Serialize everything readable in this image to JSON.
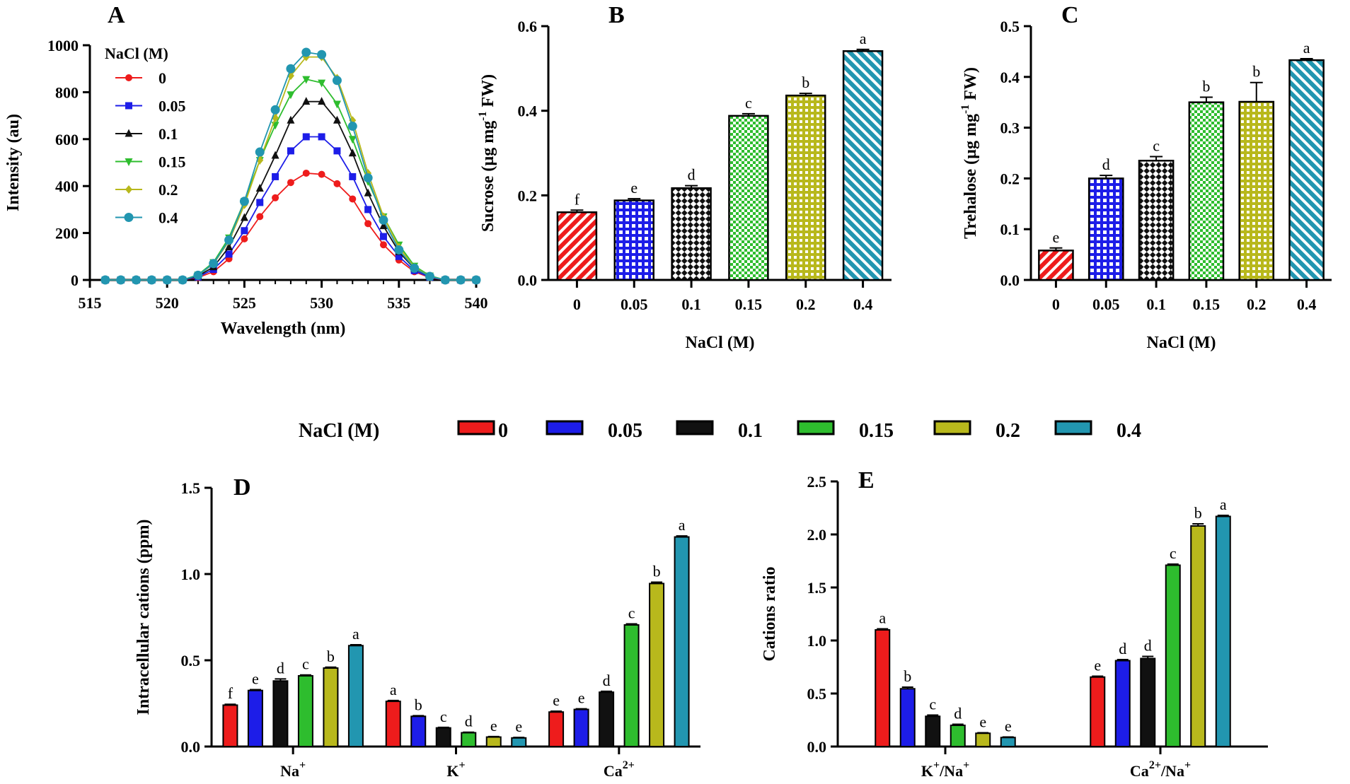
{
  "legend": {
    "title": "NaCl (M)",
    "labels": [
      "0",
      "0.05",
      "0.1",
      "0.15",
      "0.2",
      "0.4"
    ],
    "colors": [
      "#ee1c1c",
      "#1d1de8",
      "#111111",
      "#2ebd2e",
      "#b8b81c",
      "#2296b0"
    ]
  },
  "chart_data": [
    {
      "panel": "A",
      "type": "line",
      "xlabel": "Wavelength (nm)",
      "ylabel": "Intensity (au)",
      "xlim": [
        515,
        540
      ],
      "ylim": [
        0,
        1000
      ],
      "xticks": [
        "515",
        "520",
        "525",
        "530",
        "535",
        "540"
      ],
      "yticks": [
        "0",
        "200",
        "400",
        "600",
        "800",
        "1000"
      ],
      "legend_title": "NaCl (M)",
      "x": [
        516,
        517,
        518,
        519,
        520,
        521,
        522,
        523,
        524,
        525,
        526,
        527,
        528,
        529,
        530,
        531,
        532,
        533,
        534,
        535,
        536,
        537,
        538,
        539,
        540
      ],
      "series": [
        {
          "name": "0",
          "marker": "circle",
          "values": [
            0,
            0,
            0,
            0,
            0,
            0,
            10,
            35,
            90,
            175,
            270,
            350,
            415,
            455,
            450,
            410,
            345,
            240,
            150,
            85,
            35,
            10,
            0,
            0,
            0
          ]
        },
        {
          "name": "0.05",
          "marker": "square",
          "values": [
            0,
            0,
            0,
            0,
            0,
            0,
            13,
            45,
            110,
            210,
            330,
            440,
            550,
            610,
            610,
            550,
            440,
            300,
            185,
            100,
            40,
            12,
            0,
            0,
            0
          ]
        },
        {
          "name": "0.1",
          "marker": "triangle-up",
          "values": [
            0,
            0,
            0,
            0,
            0,
            0,
            17,
            55,
            140,
            265,
            390,
            530,
            680,
            760,
            760,
            680,
            540,
            370,
            230,
            120,
            48,
            15,
            0,
            0,
            0
          ]
        },
        {
          "name": "0.15",
          "marker": "triangle-down",
          "values": [
            0,
            0,
            0,
            0,
            0,
            0,
            22,
            75,
            180,
            335,
            510,
            660,
            790,
            855,
            840,
            750,
            600,
            420,
            270,
            150,
            60,
            18,
            0,
            0,
            0
          ]
        },
        {
          "name": "0.2",
          "marker": "diamond",
          "values": [
            0,
            0,
            0,
            0,
            0,
            0,
            20,
            68,
            165,
            320,
            510,
            690,
            870,
            950,
            950,
            860,
            680,
            455,
            270,
            140,
            54,
            15,
            0,
            0,
            0
          ]
        },
        {
          "name": "0.4",
          "marker": "circle",
          "values": [
            0,
            0,
            0,
            0,
            0,
            0,
            20,
            70,
            170,
            335,
            545,
            725,
            900,
            970,
            960,
            850,
            655,
            435,
            255,
            128,
            50,
            15,
            0,
            0,
            0
          ]
        }
      ]
    },
    {
      "panel": "B",
      "type": "bar",
      "xlabel": "NaCl (M)",
      "ylabel": "Sucrose (µg mg⁻¹ FW)",
      "ylabel_parts": {
        "pre": "Sucrose (µg mg",
        "sup": "-1",
        "post": " FW)"
      },
      "ylim": [
        0,
        0.6
      ],
      "yticks": [
        "0.0",
        "0.2",
        "0.4",
        "0.6"
      ],
      "categories": [
        "0",
        "0.05",
        "0.1",
        "0.15",
        "0.2",
        "0.4"
      ],
      "values": [
        0.16,
        0.188,
        0.217,
        0.388,
        0.436,
        0.541
      ],
      "errors": [
        0.005,
        0.004,
        0.006,
        0.005,
        0.005,
        0.004
      ],
      "letters": [
        "f",
        "e",
        "d",
        "c",
        "b",
        "a"
      ],
      "patterns": [
        "diag",
        "grid",
        "checker",
        "checker",
        "grid",
        "diag"
      ]
    },
    {
      "panel": "C",
      "type": "bar",
      "xlabel": "NaCl (M)",
      "ylabel": "Trehalose (µg mg⁻¹ FW)",
      "ylabel_parts": {
        "pre": "Trehalose (µg mg",
        "sup": "-1",
        "post": " FW)"
      },
      "ylim": [
        0,
        0.5
      ],
      "yticks": [
        "0.0",
        "0.1",
        "0.2",
        "0.3",
        "0.4",
        "0.5"
      ],
      "categories": [
        "0",
        "0.05",
        "0.1",
        "0.15",
        "0.2",
        "0.4"
      ],
      "values": [
        0.058,
        0.2,
        0.235,
        0.35,
        0.351,
        0.433
      ],
      "errors": [
        0.005,
        0.006,
        0.008,
        0.01,
        0.038,
        0.003
      ],
      "letters": [
        "e",
        "d",
        "c",
        "b",
        "b",
        "a"
      ],
      "patterns": [
        "diag",
        "grid",
        "checker",
        "checker",
        "grid",
        "diag"
      ]
    },
    {
      "panel": "D",
      "type": "bar",
      "xlabel": "",
      "ylabel": "Intracellular cations (ppm)",
      "ylim": [
        0,
        1.5
      ],
      "yticks": [
        "0.0",
        "0.5",
        "1.0",
        "1.5"
      ],
      "groups": [
        {
          "base": "Na",
          "sup": "+",
          "post": "",
          "post_sup": ""
        },
        {
          "base": "K",
          "sup": "+",
          "post": "",
          "post_sup": ""
        },
        {
          "base": "Ca",
          "sup": "2+",
          "post": "",
          "post_sup": ""
        }
      ],
      "series_names": [
        "0",
        "0.05",
        "0.1",
        "0.15",
        "0.2",
        "0.4"
      ],
      "values": [
        [
          0.24,
          0.325,
          0.38,
          0.41,
          0.455,
          0.585
        ],
        [
          0.262,
          0.175,
          0.108,
          0.08,
          0.055,
          0.05
        ],
        [
          0.2,
          0.215,
          0.315,
          0.705,
          0.945,
          1.215
        ]
      ],
      "errors": [
        [
          0.005,
          0.005,
          0.012,
          0.005,
          0.005,
          0.005
        ],
        [
          0.005,
          0.004,
          0.003,
          0.003,
          0.003,
          0.003
        ],
        [
          0.005,
          0.004,
          0.005,
          0.006,
          0.008,
          0.006
        ]
      ],
      "letters": [
        [
          "f",
          "e",
          "d",
          "c",
          "b",
          "a"
        ],
        [
          "a",
          "b",
          "c",
          "d",
          "e",
          "e"
        ],
        [
          "e",
          "e",
          "d",
          "c",
          "b",
          "a"
        ]
      ]
    },
    {
      "panel": "E",
      "type": "bar",
      "xlabel": "",
      "ylabel": "Cations ratio",
      "ylim": [
        0,
        2.5
      ],
      "yticks": [
        "0.0",
        "0.5",
        "1.0",
        "1.5",
        "2.0",
        "2.5"
      ],
      "groups": [
        {
          "base": "K",
          "sup": "+",
          "post": "/Na",
          "post_sup": "+"
        },
        {
          "base": "Ca",
          "sup": "2+",
          "post": "/Na",
          "post_sup": "+"
        }
      ],
      "series_names": [
        "0",
        "0.05",
        "0.1",
        "0.15",
        "0.2",
        "0.4"
      ],
      "values": [
        [
          1.1,
          0.545,
          0.285,
          0.2,
          0.125,
          0.085
        ],
        [
          0.655,
          0.81,
          0.83,
          1.71,
          2.08,
          2.17
        ]
      ],
      "errors": [
        [
          0.01,
          0.015,
          0.012,
          0.01,
          0.005,
          0.005
        ],
        [
          0.008,
          0.01,
          0.02,
          0.01,
          0.02,
          0.01
        ]
      ],
      "letters": [
        [
          "a",
          "b",
          "c",
          "d",
          "e",
          "e"
        ],
        [
          "e",
          "d",
          "d",
          "c",
          "b",
          "a"
        ]
      ]
    }
  ]
}
